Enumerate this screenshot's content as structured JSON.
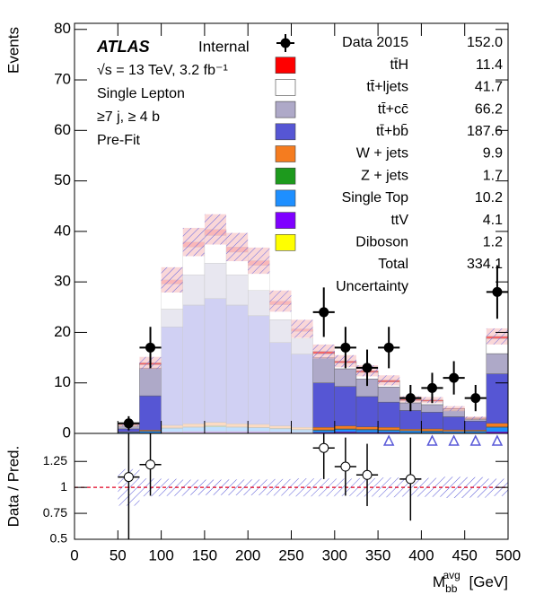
{
  "chart_data": {
    "type": "stacked_histogram",
    "experiment": "ATLAS",
    "status": "Internal",
    "energy_label": "√s = 13 TeV, 3.2 fb⁻¹",
    "channel": "Single Lepton",
    "selection": "≥7 j, ≥ 4 b",
    "stage": "Pre-Fit",
    "y_label": "Events",
    "ratio_y_label": "Data / Pred.",
    "x_label": {
      "main": "M",
      "sub": "bb",
      "sup": "avg",
      "unit": "[GeV]"
    },
    "xlim": [
      0,
      500
    ],
    "xticks": [
      0,
      50,
      100,
      150,
      200,
      250,
      300,
      350,
      400,
      450,
      500
    ],
    "ylim": [
      0,
      81.2
    ],
    "yticks": [
      0,
      10,
      20,
      30,
      40,
      50,
      60,
      70,
      80
    ],
    "ratio_ylim": [
      0.5,
      1.52
    ],
    "ratio_yticks": [
      0.5,
      0.75,
      1,
      1.25
    ],
    "ratio_reference": 1,
    "blinded_xlim": [
      100,
      275
    ],
    "bins": [
      50,
      75,
      100,
      125,
      150,
      175,
      200,
      225,
      250,
      275,
      300,
      325,
      350,
      375,
      400,
      425,
      450,
      475,
      500
    ],
    "series": [
      {
        "name": "tt̄H",
        "color": "#ff0000",
        "yield": 11.4,
        "values": [
          0.1,
          0.3,
          0.8,
          1,
          1.2,
          1,
          0.9,
          0.7,
          0.5,
          0.4,
          0.3,
          0.3,
          0.3,
          0.2,
          0.2,
          0.1,
          0.1,
          0.4
        ]
      },
      {
        "name": "tt̄+ljets",
        "color": "#ffffff",
        "yield": 41.7,
        "values": [
          0.3,
          0.7,
          5,
          5.5,
          5.5,
          4.5,
          5,
          3,
          1.5,
          0.8,
          1.2,
          1.3,
          1,
          0.5,
          0.7,
          0.3,
          0.2,
          3
        ]
      },
      {
        "name": "tt̄+cc̄",
        "color": "#aea9c8",
        "yield": 66.2,
        "values": [
          0.4,
          5.5,
          3.5,
          6,
          7,
          6,
          5,
          4.5,
          3,
          5,
          3.5,
          3.5,
          3,
          1.5,
          1.5,
          1.2,
          0.3,
          4
        ]
      },
      {
        "name": "tt̄+bb̄",
        "color": "#5656d4",
        "yield": 187.6,
        "values": [
          0.6,
          6.8,
          19.5,
          23.5,
          24.5,
          23.5,
          21.5,
          16.5,
          14.5,
          8.8,
          7.8,
          6,
          5,
          3.7,
          3.3,
          2.6,
          1.8,
          9.8
        ]
      },
      {
        "name": "W + jets",
        "color": "#f57c1f",
        "yield": 9.9,
        "values": [
          0.1,
          0.2,
          0.5,
          0.6,
          0.7,
          0.6,
          0.6,
          0.5,
          0.4,
          0.5,
          0.6,
          0.5,
          0.5,
          0.3,
          0.4,
          0.3,
          0.2,
          0.7
        ]
      },
      {
        "name": "Z + jets",
        "color": "#1d9a1d",
        "yield": 1.7,
        "values": [
          0,
          0.05,
          0.1,
          0.1,
          0.2,
          0.1,
          0.1,
          0.1,
          0.1,
          0.1,
          0.1,
          0.1,
          0.1,
          0.05,
          0.1,
          0,
          0.05,
          0.1
        ]
      },
      {
        "name": "Single Top",
        "color": "#1e8fff",
        "yield": 10.2,
        "values": [
          0.2,
          0.3,
          0.7,
          0.8,
          0.9,
          0.8,
          0.7,
          0.6,
          0.5,
          0.4,
          0.5,
          0.5,
          0.4,
          0.4,
          0.3,
          0.3,
          0.3,
          0.9
        ]
      },
      {
        "name": "ttV",
        "color": "#7f00ff",
        "yield": 4.1,
        "values": [
          0,
          0.1,
          0.2,
          0.3,
          0.3,
          0.3,
          0.3,
          0.2,
          0.2,
          0.2,
          0.2,
          0.2,
          0.2,
          0.1,
          0.1,
          0.1,
          0.1,
          0.3
        ]
      },
      {
        "name": "Diboson",
        "color": "#ffff00",
        "yield": 1.2,
        "values": [
          0,
          0,
          0.1,
          0.1,
          0.1,
          0.1,
          0.1,
          0.1,
          0,
          0,
          0.1,
          0,
          0,
          0,
          0,
          0,
          0,
          0
        ]
      }
    ],
    "uncertainty": {
      "name": "Uncertainty",
      "values": [
        0.3,
        1.2,
        2.5,
        2.8,
        3,
        2.8,
        2.6,
        2.1,
        1.8,
        1.4,
        1.2,
        1.1,
        1,
        0.6,
        0.6,
        0.5,
        0.3,
        1.6
      ]
    },
    "total": {
      "name": "Total",
      "yield": 334.1
    },
    "data": {
      "name": "Data 2015",
      "yield": 152,
      "yield_label": "152.0",
      "x_half_width": 12.5,
      "x": [
        62.5,
        87.5,
        287.5,
        312.5,
        337.5,
        362.5,
        387.5,
        412.5,
        437.5,
        462.5,
        487.5
      ],
      "values": [
        2,
        17,
        24,
        17,
        13,
        17,
        7,
        9,
        11,
        7,
        28
      ],
      "errors": [
        1.4,
        4.1,
        4.9,
        4.1,
        3.6,
        4.1,
        2.6,
        3,
        3.3,
        2.6,
        5.3
      ]
    },
    "ratio": {
      "x": [
        62.5,
        87.5,
        287.5,
        312.5,
        337.5,
        362.5,
        387.5,
        412.5,
        437.5,
        462.5,
        487.5
      ],
      "values": [
        1.1,
        1.22,
        1.38,
        1.2,
        1.12,
        1.7,
        1.08,
        1.6,
        2.1,
        2.3,
        1.55
      ],
      "errors": [
        0.6,
        0.3,
        0.3,
        0.28,
        0.3,
        null,
        0.4,
        null,
        null,
        null,
        null
      ]
    }
  }
}
